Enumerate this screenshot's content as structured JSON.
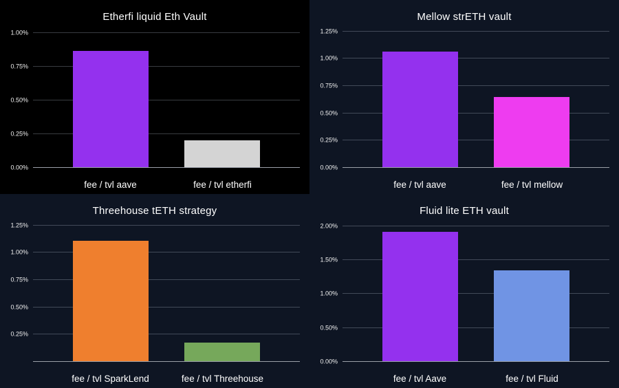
{
  "page": {
    "background": "#0e1523",
    "text_color": "#ffffff",
    "gridline_color": "#4a515e",
    "axis_line_color": "#9ba0a9"
  },
  "chart_data": [
    {
      "type": "bar",
      "title": "Etherfi liquid Eth Vault",
      "background": "#000000",
      "categories": [
        "fee / tvl aave",
        "fee / tvl etherfi"
      ],
      "values": [
        0.86,
        0.2
      ],
      "bar_colors": [
        "#9431ee",
        "#d4d4d4"
      ],
      "ylim": [
        0,
        1.06
      ],
      "yticks": [
        0,
        0.25,
        0.5,
        0.75,
        1.0
      ],
      "ytick_labels": [
        "0.00%",
        "0.25%",
        "0.50%",
        "0.75%",
        "1.00%"
      ],
      "grid": true,
      "legend": "none"
    },
    {
      "type": "bar",
      "title": "Mellow strETH vault",
      "background": "#0e1523",
      "categories": [
        "fee / tvl aave",
        "fee / tvl mellow"
      ],
      "values": [
        1.06,
        0.64
      ],
      "bar_colors": [
        "#9431ee",
        "#ee3cf0"
      ],
      "ylim": [
        0,
        1.31
      ],
      "yticks": [
        0,
        0.25,
        0.5,
        0.75,
        1.0,
        1.25
      ],
      "ytick_labels": [
        "0.00%",
        "0.25%",
        "0.50%",
        "0.75%",
        "1.00%",
        "1.25%"
      ],
      "grid": true,
      "legend": "none"
    },
    {
      "type": "bar",
      "title": "Threehouse tETH strategy",
      "background": "#0e1523",
      "categories": [
        "fee / tvl SparkLend",
        "fee / tvl Threehouse"
      ],
      "values": [
        1.1,
        0.17
      ],
      "bar_colors": [
        "#ef7f2e",
        "#76a85b"
      ],
      "ylim": [
        0,
        1.31
      ],
      "yticks": [
        0.25,
        0.5,
        0.75,
        1.0,
        1.25
      ],
      "ytick_labels": [
        "0.25%",
        "0.50%",
        "0.75%",
        "1.00%",
        "1.25%"
      ],
      "grid": true,
      "legend": "none"
    },
    {
      "type": "bar",
      "title": "Fluid lite ETH vault",
      "background": "#0e1523",
      "categories": [
        "fee / tvl Aave",
        "fee / tvl Fluid"
      ],
      "values": [
        1.91,
        1.34
      ],
      "bar_colors": [
        "#9431ee",
        "#7094e4"
      ],
      "ylim": [
        0,
        2.11
      ],
      "yticks": [
        0,
        0.5,
        1.0,
        1.5,
        2.0
      ],
      "ytick_labels": [
        "0.00%",
        "0.50%",
        "1.00%",
        "1.50%",
        "2.00%"
      ],
      "grid": true,
      "legend": "none"
    }
  ]
}
